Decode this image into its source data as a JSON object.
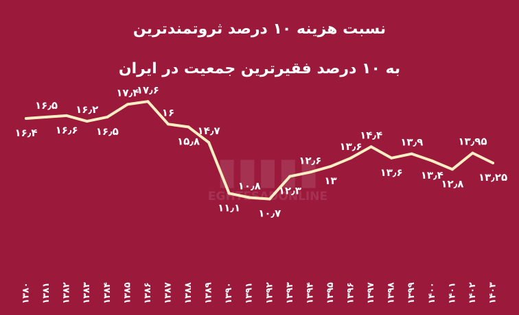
{
  "chart_data": {
    "type": "line",
    "title": "نسبت هزینه ۱۰ درصد ثروتمندترین",
    "subtitle": "به ۱۰ درصد فقیرترین جمعیت در ایران",
    "x": [
      "۱۳۸۰",
      "۱۳۸۱",
      "۱۳۸۲",
      "۱۳۸۳",
      "۱۳۸۴",
      "۱۳۸۵",
      "۱۳۸۶",
      "۱۳۸۷",
      "۱۳۸۸",
      "۱۳۸۹",
      "۱۳۹۰",
      "۱۳۹۱",
      "۱۳۹۲",
      "۱۳۹۳",
      "۱۳۹۴",
      "۱۳۹۵",
      "۱۳۹۶",
      "۱۳۹۷",
      "۱۳۹۸",
      "۱۳۹۹",
      "۱۴۰۰",
      "۱۴۰۱",
      "۱۴۰۲",
      "۱۴۰۳"
    ],
    "values": [
      16.4,
      16.5,
      16.6,
      16.2,
      16.5,
      17.4,
      17.6,
      16,
      15.8,
      14.7,
      11.1,
      10.8,
      10.7,
      12.3,
      12.6,
      13,
      13.6,
      14.4,
      13.6,
      13.9,
      13.4,
      12.8,
      13.95,
      13.25
    ],
    "labels": [
      "۱۶٫۴",
      "۱۶٫۵",
      "۱۶٫۶",
      "۱۶٫۲",
      "۱۶٫۵",
      "۱۷٫۴",
      "۱۷٫۶",
      "۱۶",
      "۱۵٫۸",
      "۱۴٫۷",
      "۱۱٫۱",
      "۱۰٫۸",
      "۱۰٫۷",
      "۱۲٫۳",
      "۱۲٫۶",
      "۱۳",
      "۱۳٫۶",
      "۱۴٫۴",
      "۱۳٫۶",
      "۱۳٫۹",
      "۱۳٫۴",
      "۱۲٫۸",
      "۱۳٫۹۵",
      "۱۳٫۲۵"
    ],
    "label_position": [
      "below",
      "above",
      "below",
      "above",
      "below",
      "above",
      "above",
      "above",
      "below",
      "above",
      "below",
      "above",
      "below",
      "below",
      "above",
      "below",
      "above",
      "above",
      "below",
      "above",
      "below",
      "below",
      "above",
      "below"
    ],
    "ylim": [
      10,
      18
    ],
    "grid": false,
    "line_color": "#fdefc3",
    "background_color": "#9b1a3c",
    "watermark": "EGHTESADONLINE"
  }
}
